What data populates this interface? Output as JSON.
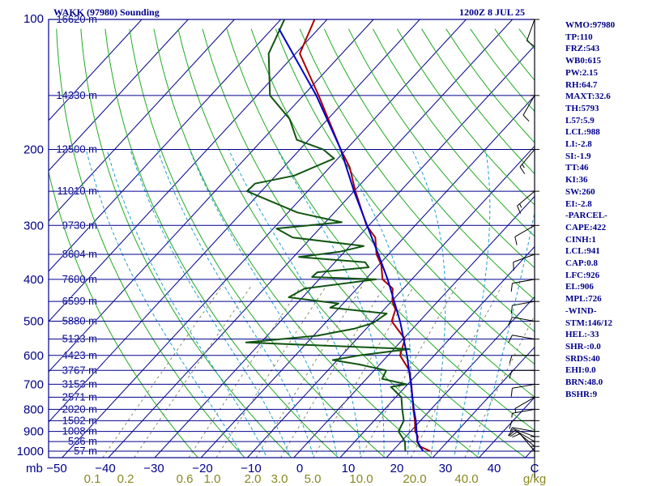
{
  "title": "WAKK (97980) Sounding",
  "time_label": "1200Z  8 JUL 25",
  "colors": {
    "frame": "#00008b",
    "isobar": "#00008b",
    "isotherm": "#00008b",
    "dry_adiabat": "#22aa22",
    "moist_adiabat": "#1ea0d0",
    "mixing_ratio": "#888866",
    "temperature": "#aa0000",
    "dewpoint": "#115511",
    "parcel": "#0000cc",
    "wind": "#000000",
    "temp_axis_text": "#00008b",
    "mixratio_axis_text": "#888822"
  },
  "pressure_labels": [
    "100",
    "200",
    "300",
    "400",
    "500",
    "600",
    "700",
    "800",
    "900",
    "1000"
  ],
  "axis_unit_left": "mb",
  "axis_unit_right": "C",
  "mixing_ratio_unit": "g/kg",
  "height_labels": [
    {
      "p": 100,
      "h": "16620 m"
    },
    {
      "p": 150,
      "h": "14330 m"
    },
    {
      "p": 200,
      "h": "12500 m"
    },
    {
      "p": 250,
      "h": "11010 m"
    },
    {
      "p": 300,
      "h": "9730 m"
    },
    {
      "p": 350,
      "h": "8604 m"
    },
    {
      "p": 400,
      "h": "7600 m"
    },
    {
      "p": 450,
      "h": "6599 m"
    },
    {
      "p": 500,
      "h": "5880 m"
    },
    {
      "p": 550,
      "h": "5123 m"
    },
    {
      "p": 600,
      "h": "4423 m"
    },
    {
      "p": 650,
      "h": "3767 m"
    },
    {
      "p": 700,
      "h": "3153 m"
    },
    {
      "p": 750,
      "h": "2571 m"
    },
    {
      "p": 800,
      "h": "2020 m"
    },
    {
      "p": 850,
      "h": "1502 m"
    },
    {
      "p": 900,
      "h": "1008 m"
    },
    {
      "p": 950,
      "h": "536 m"
    },
    {
      "p": 1000,
      "h": "57 m"
    }
  ],
  "temp_ticks": [
    {
      "v": -50,
      "label": "−50"
    },
    {
      "v": -40,
      "label": "−40"
    },
    {
      "v": -30,
      "label": "−30"
    },
    {
      "v": -20,
      "label": "−20"
    },
    {
      "v": -10,
      "label": "−10"
    },
    {
      "v": 0,
      "label": "0"
    },
    {
      "v": 10,
      "label": "10"
    },
    {
      "v": 20,
      "label": "20"
    },
    {
      "v": 30,
      "label": "30"
    },
    {
      "v": 40,
      "label": "40"
    }
  ],
  "mixing_ratio_labels": [
    "0.1",
    "0.2",
    "0.6",
    "1.0",
    "2.0",
    "3.0",
    "5.0",
    "10.0",
    "20.0",
    "40.0"
  ],
  "params": [
    "WMO:97980",
    "TP:110",
    "FRZ:543",
    "WB0:615",
    "PW:2.15",
    "RH:64.7",
    "MAXT:32.6",
    "TH:5793",
    "L57:5.9",
    "LCL:988",
    "LI:-2.8",
    "SI:-1.9",
    "TT:46",
    "KI:36",
    "SW:260",
    "EI:-2.8",
    "-PARCEL-",
    "CAPE:422",
    "CINH:1",
    "LCL:941",
    "CAP:0.8",
    "LFC:926",
    "EL:906",
    "MPL:726",
    "-WIND-",
    "STM:146/12",
    "HEL:-33",
    "SHR-:0.0",
    "SRDS:40",
    "EHI:0.0",
    "BRN:48.0",
    "BSHR:9"
  ],
  "chart_data": {
    "type": "skew-t sounding",
    "title": "WAKK (97980) Sounding",
    "x_axis": {
      "label": "C",
      "range": [
        -50,
        50
      ]
    },
    "y_axis": {
      "label": "mb",
      "range": [
        1000,
        100
      ],
      "scale": "log"
    },
    "series": [
      {
        "name": "temperature",
        "points": [
          {
            "p": 1000,
            "t": 28.2
          },
          {
            "p": 975,
            "t": 25.0
          },
          {
            "p": 950,
            "t": 23.4
          },
          {
            "p": 925,
            "t": 22.6
          },
          {
            "p": 900,
            "t": 21.0
          },
          {
            "p": 850,
            "t": 18.8
          },
          {
            "p": 800,
            "t": 16.2
          },
          {
            "p": 700,
            "t": 10.8
          },
          {
            "p": 650,
            "t": 7.6
          },
          {
            "p": 600,
            "t": 2.6
          },
          {
            "p": 550,
            "t": 0.4
          },
          {
            "p": 500,
            "t": -6.0
          },
          {
            "p": 470,
            "t": -7.5
          },
          {
            "p": 450,
            "t": -9.8
          },
          {
            "p": 420,
            "t": -12.3
          },
          {
            "p": 400,
            "t": -16.3
          },
          {
            "p": 370,
            "t": -19.5
          },
          {
            "p": 350,
            "t": -22.6
          },
          {
            "p": 320,
            "t": -26.2
          },
          {
            "p": 300,
            "t": -30.5
          },
          {
            "p": 280,
            "t": -34.0
          },
          {
            "p": 250,
            "t": -39.7
          },
          {
            "p": 220,
            "t": -45.7
          },
          {
            "p": 200,
            "t": -51.2
          },
          {
            "p": 150,
            "t": -66.7
          },
          {
            "p": 120,
            "t": -79.1
          },
          {
            "p": 100,
            "t": -82.7
          }
        ]
      },
      {
        "name": "dewpoint",
        "points": [
          {
            "p": 1000,
            "t": 22.8
          },
          {
            "p": 950,
            "t": 20.8
          },
          {
            "p": 900,
            "t": 17.4
          },
          {
            "p": 850,
            "t": 16.4
          },
          {
            "p": 800,
            "t": 13.8
          },
          {
            "p": 750,
            "t": 11.2
          },
          {
            "p": 710,
            "t": 6.9
          },
          {
            "p": 700,
            "t": 9.7
          },
          {
            "p": 680,
            "t": 3.4
          },
          {
            "p": 650,
            "t": 2.6
          },
          {
            "p": 630,
            "t": -4.3
          },
          {
            "p": 615,
            "t": -11.0
          },
          {
            "p": 600,
            "t": -6.2
          },
          {
            "p": 580,
            "t": 3.4
          },
          {
            "p": 560,
            "t": -33.2
          },
          {
            "p": 540,
            "t": -19.1
          },
          {
            "p": 520,
            "t": -12.5
          },
          {
            "p": 505,
            "t": -9.7
          },
          {
            "p": 480,
            "t": -8.6
          },
          {
            "p": 465,
            "t": -22.0
          },
          {
            "p": 455,
            "t": -21.0
          },
          {
            "p": 440,
            "t": -33.0
          },
          {
            "p": 420,
            "t": -31.3
          },
          {
            "p": 400,
            "t": -17.7
          },
          {
            "p": 395,
            "t": -32.0
          },
          {
            "p": 385,
            "t": -31.8
          },
          {
            "p": 375,
            "t": -21.7
          },
          {
            "p": 365,
            "t": -23.5
          },
          {
            "p": 355,
            "t": -38.8
          },
          {
            "p": 345,
            "t": -31.0
          },
          {
            "p": 335,
            "t": -27.0
          },
          {
            "p": 320,
            "t": -44.0
          },
          {
            "p": 305,
            "t": -49.3
          },
          {
            "p": 295,
            "t": -36.5
          },
          {
            "p": 280,
            "t": -48.0
          },
          {
            "p": 250,
            "t": -63.1
          },
          {
            "p": 240,
            "t": -62.9
          },
          {
            "p": 230,
            "t": -56.0
          },
          {
            "p": 210,
            "t": -50.8
          },
          {
            "p": 200,
            "t": -55.0
          },
          {
            "p": 190,
            "t": -62.6
          },
          {
            "p": 170,
            "t": -68.3
          },
          {
            "p": 150,
            "t": -77.2
          },
          {
            "p": 120,
            "t": -85.8
          },
          {
            "p": 100,
            "t": -89.2
          }
        ]
      },
      {
        "name": "parcel",
        "points": [
          {
            "p": 1000,
            "t": 26.6
          },
          {
            "p": 950,
            "t": 23.5
          },
          {
            "p": 900,
            "t": 21.3
          },
          {
            "p": 850,
            "t": 19.0
          },
          {
            "p": 800,
            "t": 16.3
          },
          {
            "p": 700,
            "t": 10.7
          },
          {
            "p": 600,
            "t": 4.1
          },
          {
            "p": 500,
            "t": -4.2
          },
          {
            "p": 400,
            "t": -15.2
          },
          {
            "p": 350,
            "t": -22.2
          },
          {
            "p": 300,
            "t": -30.4
          },
          {
            "p": 250,
            "t": -40.0
          },
          {
            "p": 200,
            "t": -51.2
          },
          {
            "p": 150,
            "t": -67.2
          },
          {
            "p": 105,
            "t": -88.6
          }
        ]
      }
    ],
    "wind_barbs": [
      {
        "p": 1000,
        "dir": 220,
        "spd": 10
      },
      {
        "p": 975,
        "dir": 230,
        "spd": 10
      },
      {
        "p": 950,
        "dir": 240,
        "spd": 10
      },
      {
        "p": 925,
        "dir": 250,
        "spd": 10
      },
      {
        "p": 900,
        "dir": 260,
        "spd": 5
      },
      {
        "p": 850,
        "dir": 270,
        "spd": 10
      },
      {
        "p": 800,
        "dir": 280,
        "spd": 5
      },
      {
        "p": 750,
        "dir": 300,
        "spd": 5
      },
      {
        "p": 700,
        "dir": 280,
        "spd": 10
      },
      {
        "p": 650,
        "dir": 270,
        "spd": 10
      },
      {
        "p": 600,
        "dir": 270,
        "spd": 10
      },
      {
        "p": 550,
        "dir": 260,
        "spd": 10
      },
      {
        "p": 500,
        "dir": 260,
        "spd": 10
      },
      {
        "p": 450,
        "dir": 280,
        "spd": 10
      },
      {
        "p": 400,
        "dir": 280,
        "spd": 10
      },
      {
        "p": 350,
        "dir": 290,
        "spd": 10
      },
      {
        "p": 300,
        "dir": 300,
        "spd": 10
      },
      {
        "p": 250,
        "dir": 310,
        "spd": 15
      },
      {
        "p": 200,
        "dir": 320,
        "spd": 15
      },
      {
        "p": 150,
        "dir": 330,
        "spd": 10
      },
      {
        "p": 100,
        "dir": 340,
        "spd": 10
      }
    ],
    "grid": true
  }
}
